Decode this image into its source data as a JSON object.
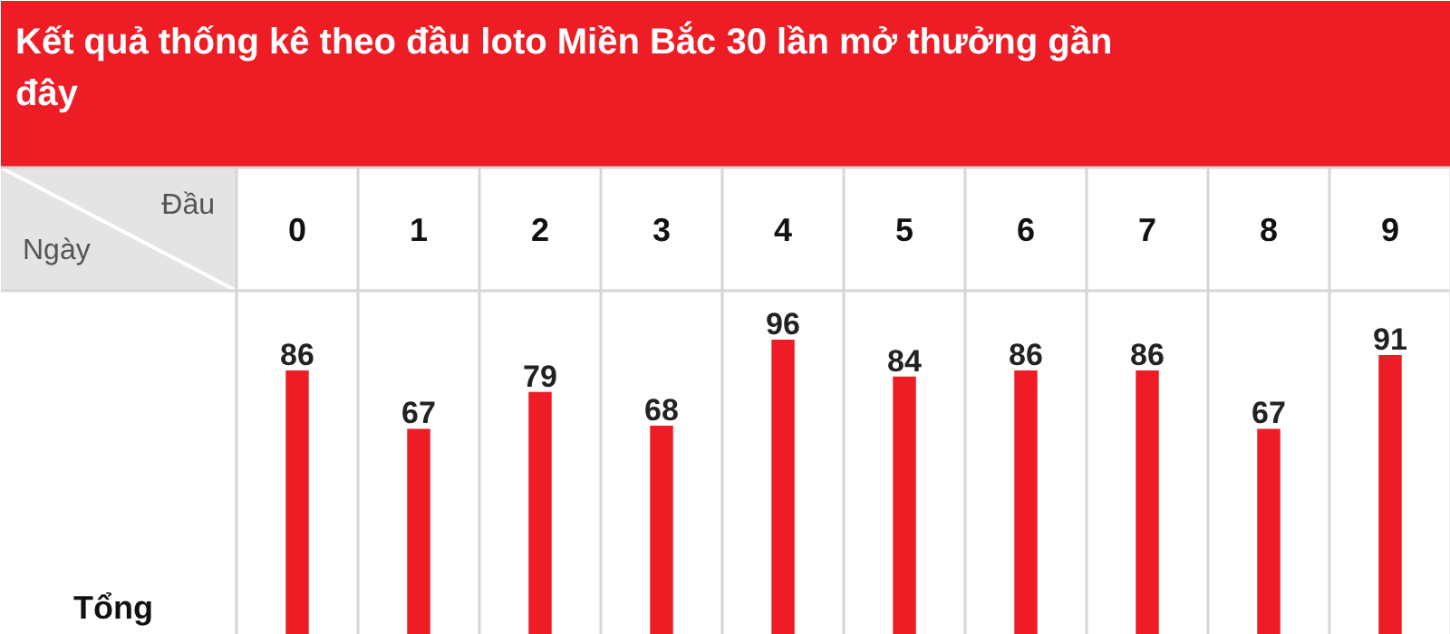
{
  "chart_data": {
    "type": "bar",
    "title": "Kết quả thống kê theo đầu loto Miền Bắc 30 lần mở thưởng gần đây",
    "categories": [
      "0",
      "1",
      "2",
      "3",
      "4",
      "5",
      "6",
      "7",
      "8",
      "9"
    ],
    "values": [
      86,
      67,
      79,
      68,
      96,
      84,
      86,
      86,
      67,
      91
    ],
    "color": "#ee1c25",
    "data_labels": true,
    "annotations": [
      "Đầu",
      "Ngày",
      "Tổng"
    ]
  }
}
